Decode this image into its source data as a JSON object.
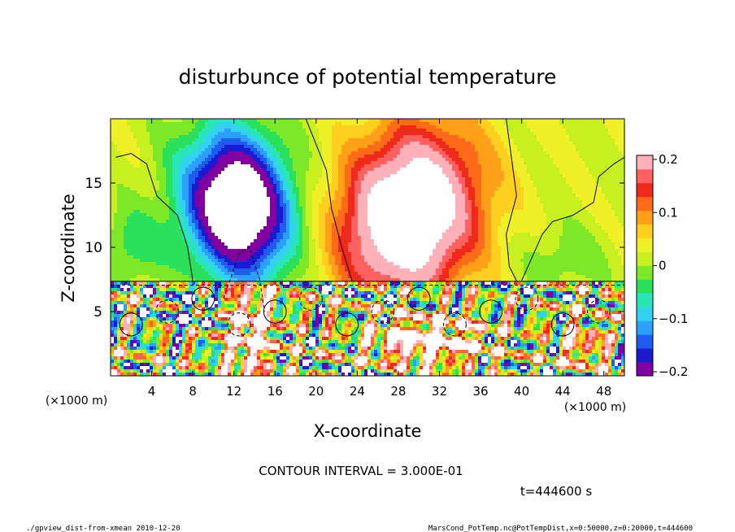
{
  "chart_data": {
    "type": "heatmap",
    "title": "disturbunce of potential temperature",
    "xlabel": "X-coordinate",
    "ylabel": "Z-coordinate",
    "x_unit": "(×1000 m)",
    "xlim": [
      0,
      50
    ],
    "ylim": [
      0,
      20
    ],
    "x_ticks": [
      "4",
      "8",
      "12",
      "16",
      "20",
      "24",
      "28",
      "32",
      "36",
      "40",
      "44",
      "48"
    ],
    "y_ticks": [
      "5",
      "10",
      "15"
    ],
    "colorbar": {
      "ticks": [
        "0.2",
        "0.1",
        "0",
        "−0.1",
        "−0.2"
      ],
      "range": [
        -0.2,
        0.2
      ],
      "colors": [
        "#8000a0",
        "#1a1ad0",
        "#1e5cf0",
        "#2ca0ff",
        "#33d2f0",
        "#28e6b8",
        "#2be05a",
        "#7ce828",
        "#c8f020",
        "#f0f028",
        "#ffd020",
        "#ffa018",
        "#ff6a18",
        "#f02a1a",
        "#ff6060",
        "#ffb0b8"
      ]
    },
    "grid": false,
    "contour_interval_label": "CONTOUR INTERVAL = 3.000E-01",
    "time_label": "t=444600 s",
    "features": [
      {
        "kind": "cold anomaly",
        "x": 12,
        "z": 13,
        "value": -0.2
      },
      {
        "kind": "warm anomaly",
        "x": 29,
        "z": 12.5,
        "value": 0.2
      },
      {
        "kind": "boundary layer",
        "z_top": 7.3
      }
    ]
  },
  "footer": {
    "left": "./gpview_dist-from-xmean  2010-12-20",
    "right": "MarsCond_PotTemp.nc@PotTempDist,x=0:50000,z=0:20000,t=444600"
  }
}
